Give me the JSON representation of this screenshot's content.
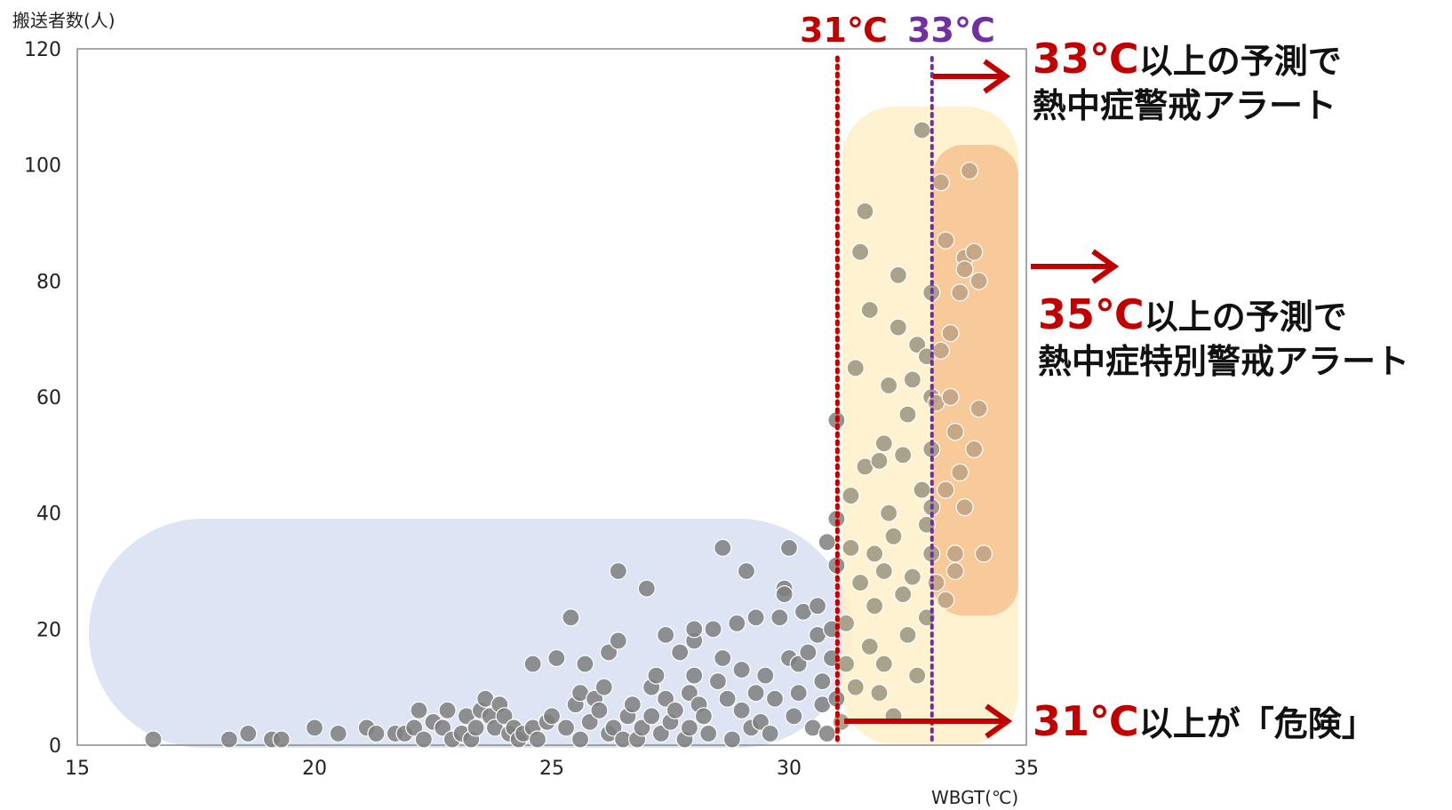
{
  "chart_data": {
    "type": "scatter",
    "ylabel": "搬送者数(人)",
    "xlabel": "WBGT(℃)",
    "xlim": [
      15,
      35
    ],
    "ylim": [
      0,
      120
    ],
    "xticks": [
      "15",
      "20",
      "25",
      "30",
      "35"
    ],
    "yticks": [
      "0",
      "20",
      "40",
      "60",
      "80",
      "100",
      "120"
    ],
    "grid": false,
    "thresholds": [
      {
        "label": "31℃",
        "x": 31,
        "color": "#c00000"
      },
      {
        "label": "33℃",
        "x": 33,
        "color": "#7030a0"
      }
    ],
    "annotations": [
      {
        "big": "33℃",
        "text": "以上の予測で",
        "line2": "熱中症警戒アラート"
      },
      {
        "big": "35℃",
        "text": "以上の予測で",
        "line2": "熱中症特別警戒アラート"
      },
      {
        "big": "31℃",
        "text": "以上が「危険」"
      }
    ],
    "points_below_31": [
      [
        16.6,
        1
      ],
      [
        18.2,
        1
      ],
      [
        18.6,
        2
      ],
      [
        19.1,
        1
      ],
      [
        19.3,
        1
      ],
      [
        20,
        3
      ],
      [
        20.5,
        2
      ],
      [
        21.1,
        3
      ],
      [
        21.3,
        2
      ],
      [
        21.7,
        2
      ],
      [
        21.9,
        2
      ],
      [
        22.1,
        3
      ],
      [
        22.2,
        6
      ],
      [
        22.3,
        1
      ],
      [
        22.5,
        4
      ],
      [
        22.7,
        3
      ],
      [
        22.8,
        6
      ],
      [
        22.9,
        1
      ],
      [
        23.1,
        2
      ],
      [
        23.2,
        5
      ],
      [
        23.3,
        1
      ],
      [
        23.4,
        3
      ],
      [
        23.5,
        6
      ],
      [
        23.6,
        8
      ],
      [
        23.7,
        5
      ],
      [
        23.8,
        3
      ],
      [
        23.9,
        7
      ],
      [
        24,
        5
      ],
      [
        24.1,
        2
      ],
      [
        24.2,
        3
      ],
      [
        24.3,
        1
      ],
      [
        24.4,
        2
      ],
      [
        24.6,
        3
      ],
      [
        24.6,
        14
      ],
      [
        24.7,
        1
      ],
      [
        24.9,
        4
      ],
      [
        25,
        5
      ],
      [
        25.1,
        15
      ],
      [
        25.3,
        3
      ],
      [
        25.4,
        22
      ],
      [
        25.5,
        7
      ],
      [
        25.6,
        9
      ],
      [
        25.6,
        1
      ],
      [
        25.7,
        14
      ],
      [
        25.8,
        4
      ],
      [
        25.9,
        8
      ],
      [
        26,
        6
      ],
      [
        26.1,
        10
      ],
      [
        26.2,
        2
      ],
      [
        26.2,
        16
      ],
      [
        26.3,
        3
      ],
      [
        26.4,
        30
      ],
      [
        26.4,
        18
      ],
      [
        26.5,
        1
      ],
      [
        26.6,
        5
      ],
      [
        26.7,
        7
      ],
      [
        26.8,
        1
      ],
      [
        26.9,
        3
      ],
      [
        27,
        27
      ],
      [
        27.1,
        10
      ],
      [
        27.1,
        5
      ],
      [
        27.2,
        12
      ],
      [
        27.3,
        2
      ],
      [
        27.4,
        8
      ],
      [
        27.4,
        19
      ],
      [
        27.5,
        4
      ],
      [
        27.6,
        6
      ],
      [
        27.7,
        16
      ],
      [
        27.8,
        1
      ],
      [
        27.9,
        9
      ],
      [
        27.9,
        3
      ],
      [
        28,
        18
      ],
      [
        28,
        20
      ],
      [
        28,
        12
      ],
      [
        28.1,
        7
      ],
      [
        28.2,
        5
      ],
      [
        28.3,
        2
      ],
      [
        28.4,
        20
      ],
      [
        28.5,
        11
      ],
      [
        28.6,
        15
      ],
      [
        28.6,
        34
      ],
      [
        28.7,
        8
      ],
      [
        28.8,
        1
      ],
      [
        28.9,
        21
      ],
      [
        29,
        6
      ],
      [
        29,
        13
      ],
      [
        29.1,
        30
      ],
      [
        29.2,
        3
      ],
      [
        29.3,
        9
      ],
      [
        29.3,
        22
      ],
      [
        29.4,
        4
      ],
      [
        29.5,
        12
      ],
      [
        29.6,
        2
      ],
      [
        29.7,
        8
      ],
      [
        29.8,
        22
      ],
      [
        29.9,
        27
      ],
      [
        29.9,
        26
      ],
      [
        30,
        15
      ],
      [
        30,
        34
      ],
      [
        30.1,
        5
      ],
      [
        30.2,
        14
      ],
      [
        30.2,
        9
      ],
      [
        30.3,
        23
      ],
      [
        30.4,
        16
      ],
      [
        30.5,
        3
      ],
      [
        30.6,
        19
      ],
      [
        30.6,
        24
      ],
      [
        30.7,
        7
      ],
      [
        30.7,
        11
      ],
      [
        30.8,
        2
      ],
      [
        30.8,
        35
      ],
      [
        30.9,
        20
      ],
      [
        30.9,
        15
      ],
      [
        31,
        56
      ],
      [
        31,
        39
      ],
      [
        31,
        31
      ],
      [
        31,
        8
      ]
    ],
    "points_31_to_33": [
      [
        31.1,
        4
      ],
      [
        31.2,
        14
      ],
      [
        31.2,
        21
      ],
      [
        31.3,
        34
      ],
      [
        31.3,
        43
      ],
      [
        31.4,
        65
      ],
      [
        31.4,
        10
      ],
      [
        31.5,
        85
      ],
      [
        31.5,
        28
      ],
      [
        31.6,
        92
      ],
      [
        31.6,
        48
      ],
      [
        31.7,
        75
      ],
      [
        31.7,
        17
      ],
      [
        31.8,
        24
      ],
      [
        31.8,
        33
      ],
      [
        31.9,
        49
      ],
      [
        31.9,
        9
      ],
      [
        32,
        52
      ],
      [
        32,
        30
      ],
      [
        32,
        14
      ],
      [
        32.1,
        62
      ],
      [
        32.1,
        40
      ],
      [
        32.2,
        36
      ],
      [
        32.2,
        5
      ],
      [
        32.3,
        81
      ],
      [
        32.3,
        72
      ],
      [
        32.4,
        26
      ],
      [
        32.4,
        50
      ],
      [
        32.5,
        57
      ],
      [
        32.5,
        19
      ],
      [
        32.6,
        63
      ],
      [
        32.6,
        29
      ],
      [
        32.7,
        69
      ],
      [
        32.7,
        12
      ],
      [
        32.8,
        106
      ],
      [
        32.8,
        44
      ],
      [
        32.9,
        67
      ],
      [
        32.9,
        38
      ],
      [
        32.9,
        22
      ],
      [
        33,
        78
      ],
      [
        33,
        60
      ],
      [
        33,
        51
      ],
      [
        33,
        41
      ],
      [
        33,
        33
      ]
    ],
    "points_above_33": [
      [
        33.1,
        59
      ],
      [
        33.1,
        28
      ],
      [
        33.2,
        97
      ],
      [
        33.2,
        68
      ],
      [
        33.3,
        87
      ],
      [
        33.3,
        44
      ],
      [
        33.3,
        25
      ],
      [
        33.4,
        71
      ],
      [
        33.4,
        60
      ],
      [
        33.5,
        54
      ],
      [
        33.5,
        33
      ],
      [
        33.5,
        30
      ],
      [
        33.6,
        78
      ],
      [
        33.6,
        47
      ],
      [
        33.7,
        84
      ],
      [
        33.7,
        82
      ],
      [
        33.7,
        41
      ],
      [
        33.8,
        99
      ],
      [
        33.9,
        85
      ],
      [
        33.9,
        51
      ],
      [
        34,
        80
      ],
      [
        34,
        58
      ],
      [
        34.1,
        33
      ]
    ]
  }
}
